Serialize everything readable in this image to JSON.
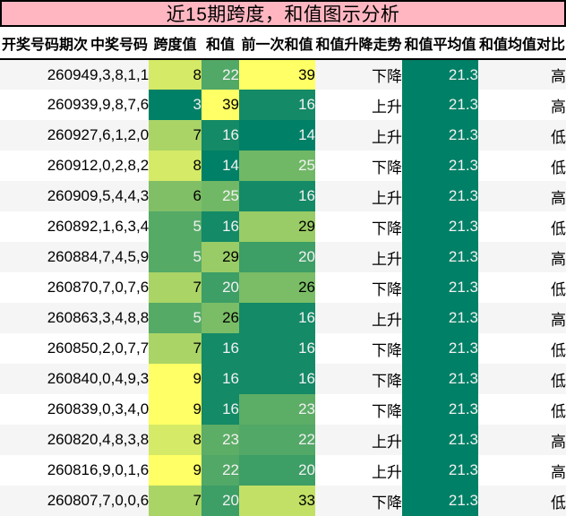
{
  "chart_data": {
    "type": "table",
    "title": "近15期跨度，和值图示分析",
    "columns": [
      "开奖号码期次",
      "中奖号码",
      "跨度值",
      "和值",
      "前一次和值",
      "和值升降走势",
      "和值平均值",
      "和值均值对比"
    ],
    "rows": [
      {
        "period": "26094",
        "numbers": "9,3,8,1,1",
        "span": 8,
        "sum": 22,
        "prev_sum": 39,
        "trend": "下降",
        "avg": "21.3",
        "compare": "高"
      },
      {
        "period": "26093",
        "numbers": "9,9,8,7,6",
        "span": 3,
        "sum": 39,
        "prev_sum": 16,
        "trend": "上升",
        "avg": "21.3",
        "compare": "高"
      },
      {
        "period": "26092",
        "numbers": "7,6,1,2,0",
        "span": 7,
        "sum": 16,
        "prev_sum": 14,
        "trend": "上升",
        "avg": "21.3",
        "compare": "低"
      },
      {
        "period": "26091",
        "numbers": "2,0,2,8,2",
        "span": 8,
        "sum": 14,
        "prev_sum": 25,
        "trend": "下降",
        "avg": "21.3",
        "compare": "低"
      },
      {
        "period": "26090",
        "numbers": "9,5,4,4,3",
        "span": 6,
        "sum": 25,
        "prev_sum": 16,
        "trend": "上升",
        "avg": "21.3",
        "compare": "高"
      },
      {
        "period": "26089",
        "numbers": "2,1,6,3,4",
        "span": 5,
        "sum": 16,
        "prev_sum": 29,
        "trend": "下降",
        "avg": "21.3",
        "compare": "低"
      },
      {
        "period": "26088",
        "numbers": "4,7,4,5,9",
        "span": 5,
        "sum": 29,
        "prev_sum": 20,
        "trend": "上升",
        "avg": "21.3",
        "compare": "高"
      },
      {
        "period": "26087",
        "numbers": "0,7,0,7,6",
        "span": 7,
        "sum": 20,
        "prev_sum": 26,
        "trend": "下降",
        "avg": "21.3",
        "compare": "低"
      },
      {
        "period": "26086",
        "numbers": "3,3,4,8,8",
        "span": 5,
        "sum": 26,
        "prev_sum": 16,
        "trend": "上升",
        "avg": "21.3",
        "compare": "高"
      },
      {
        "period": "26085",
        "numbers": "0,2,0,7,7",
        "span": 7,
        "sum": 16,
        "prev_sum": 16,
        "trend": "下降",
        "avg": "21.3",
        "compare": "低"
      },
      {
        "period": "26084",
        "numbers": "0,0,4,9,3",
        "span": 9,
        "sum": 16,
        "prev_sum": 16,
        "trend": "下降",
        "avg": "21.3",
        "compare": "低"
      },
      {
        "period": "26083",
        "numbers": "9,0,3,4,0",
        "span": 9,
        "sum": 16,
        "prev_sum": 23,
        "trend": "下降",
        "avg": "21.3",
        "compare": "低"
      },
      {
        "period": "26082",
        "numbers": "0,4,8,3,8",
        "span": 8,
        "sum": 23,
        "prev_sum": 22,
        "trend": "上升",
        "avg": "21.3",
        "compare": "高"
      },
      {
        "period": "26081",
        "numbers": "6,9,0,1,6",
        "span": 9,
        "sum": 22,
        "prev_sum": 20,
        "trend": "上升",
        "avg": "21.3",
        "compare": "高"
      },
      {
        "period": "26080",
        "numbers": "7,7,0,0,6",
        "span": 7,
        "sum": 20,
        "prev_sum": 33,
        "trend": "下降",
        "avg": "21.3",
        "compare": "低"
      }
    ],
    "heatmap": {
      "colormap": "summer",
      "low_color": "#008066",
      "high_color": "#ffff66",
      "span_range": [
        3,
        9
      ],
      "sum_range": [
        14,
        39
      ],
      "avg_value": 21.3,
      "text_light": "#f1f1f1",
      "text_dark": "#000000"
    }
  },
  "colors": {
    "title_bg": "#ffb6c1",
    "title_border": "#000000",
    "header_divider": "#000000",
    "row_odd_bg": "#f5f5f5",
    "row_even_bg": "#ffffff"
  }
}
